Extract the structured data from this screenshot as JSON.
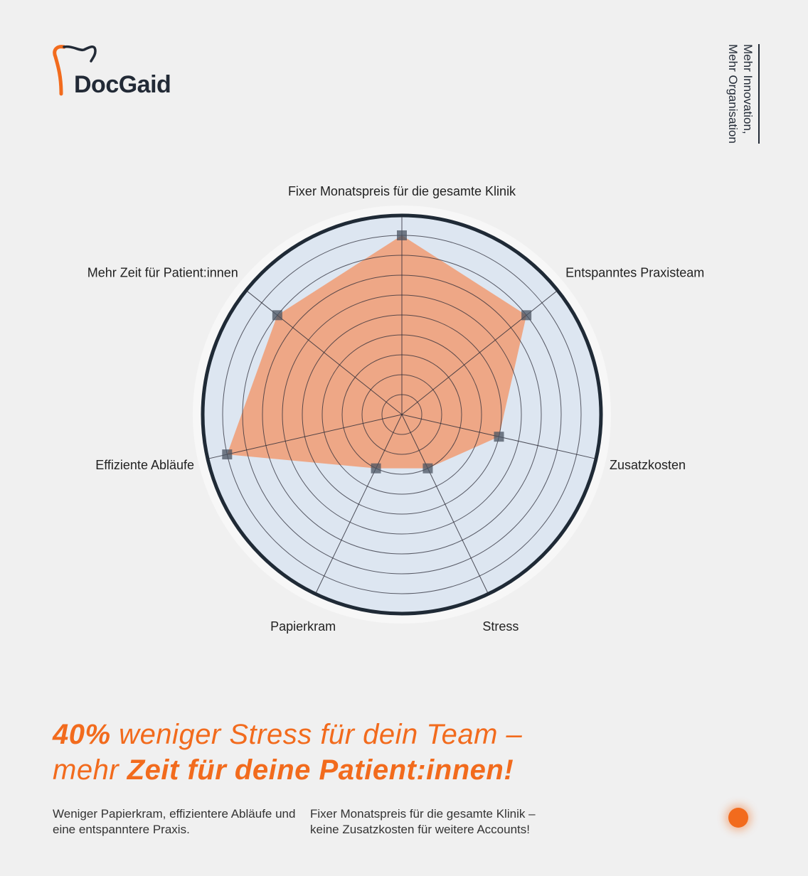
{
  "brand": {
    "name": "DocGaid",
    "tagline_line1": "Mehr Innovation,",
    "tagline_line2": "Mehr Organisation"
  },
  "chart_data": {
    "type": "radar",
    "title": "",
    "categories": [
      "Fixer Monatspreis für die gesamte Klinik",
      "Entspanntes Praxisteam",
      "Zusatzkosten",
      "Stress",
      "Papierkram",
      "Effiziente Abläufe",
      "Mehr Zeit für Patient:innen"
    ],
    "values": [
      9,
      8,
      5,
      3,
      3,
      9,
      8
    ],
    "range": [
      0,
      10
    ],
    "rings": 10,
    "colors": {
      "fill": "#f0a07a",
      "ring_bg": "#dde6f1",
      "border": "#1f2a36",
      "accent": "#f26b1d"
    }
  },
  "headline": {
    "bold1": "40%",
    "text1": " weniger Stress für dein Team –",
    "text2": "mehr ",
    "bold2": "Zeit für deine Patient:innen!"
  },
  "sub_left": "Weniger Papierkram, effizientere Abläufe und eine entspanntere Praxis.",
  "sub_right": "Fixer Monatspreis für die gesamte Klinik – keine Zusatzkosten für weitere Accounts!"
}
